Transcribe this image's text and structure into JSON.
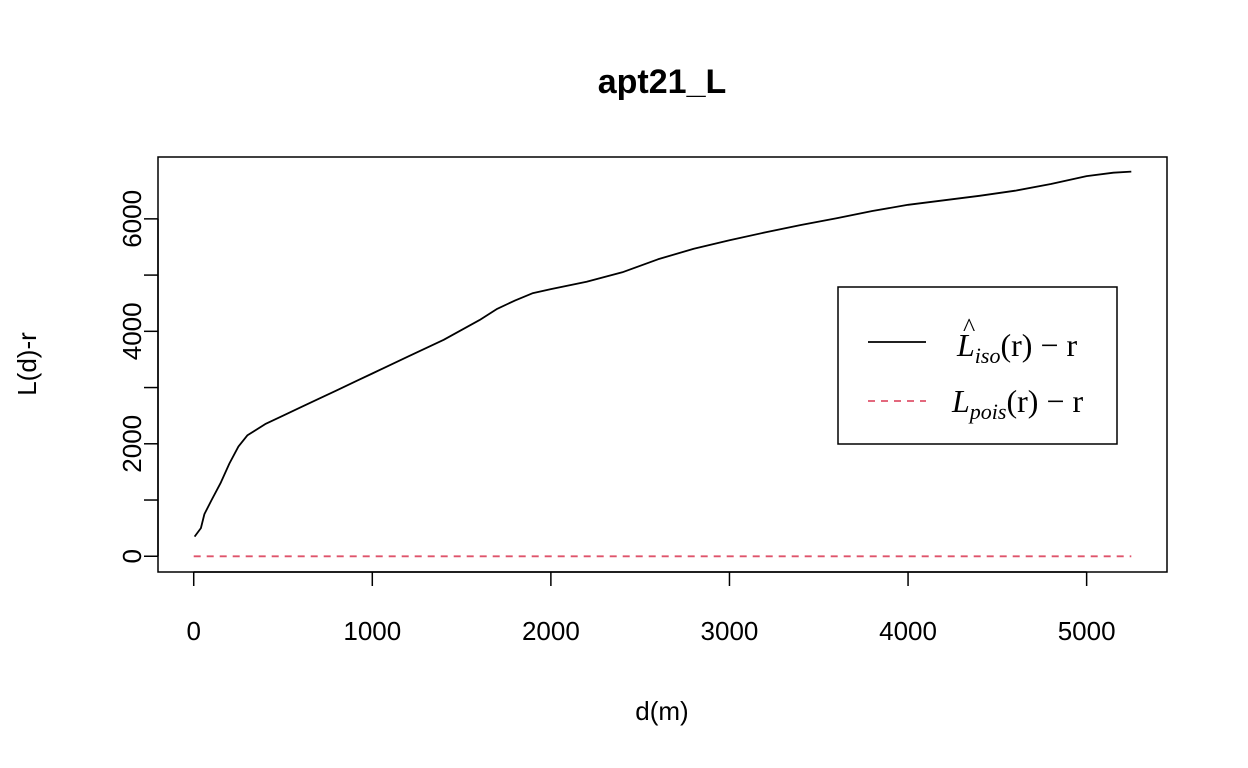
{
  "chart_data": {
    "type": "line",
    "title": "apt21_L",
    "xlabel": "d(m)",
    "ylabel": "L(d)-r",
    "xlim": [
      -200,
      5450
    ],
    "ylim": [
      -280,
      7100
    ],
    "xticks": [
      0,
      1000,
      2000,
      3000,
      4000,
      5000
    ],
    "yticks": [
      0,
      2000,
      4000,
      6000
    ],
    "yticks_minor": [
      1000,
      3000,
      5000
    ],
    "grid": false,
    "legend_position": "right",
    "series": [
      {
        "legend_main": "L",
        "legend_hat": "^",
        "legend_sub": "iso",
        "legend_rest": "(r) − r",
        "color": "#000000",
        "dash": "solid",
        "x": [
          5,
          40,
          60,
          100,
          150,
          200,
          250,
          300,
          400,
          500,
          600,
          700,
          800,
          900,
          1000,
          1200,
          1400,
          1600,
          1700,
          1800,
          1900,
          2000,
          2200,
          2400,
          2600,
          2800,
          3000,
          3200,
          3400,
          3600,
          3800,
          4000,
          4200,
          4400,
          4600,
          4800,
          5000,
          5150,
          5250
        ],
        "y": [
          350,
          500,
          750,
          1000,
          1300,
          1650,
          1950,
          2150,
          2350,
          2500,
          2650,
          2800,
          2950,
          3100,
          3250,
          3550,
          3850,
          4200,
          4400,
          4550,
          4680,
          4750,
          4880,
          5050,
          5280,
          5470,
          5620,
          5760,
          5890,
          6010,
          6140,
          6250,
          6330,
          6410,
          6500,
          6620,
          6760,
          6820,
          6840
        ]
      },
      {
        "legend_main": "L",
        "legend_hat": "",
        "legend_sub": "pois",
        "legend_rest": "(r) − r",
        "color": "#df536b",
        "dash": "dashed",
        "x": [
          0,
          5250
        ],
        "y": [
          0,
          0
        ]
      }
    ]
  }
}
